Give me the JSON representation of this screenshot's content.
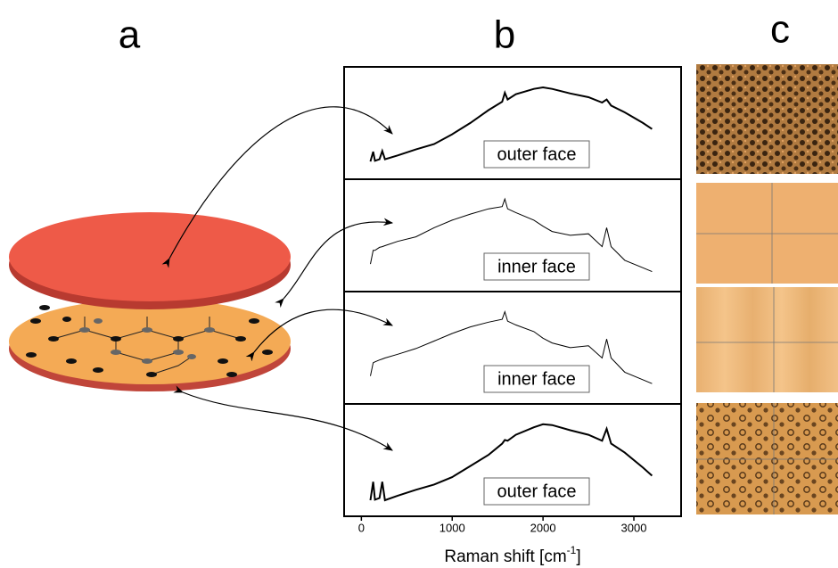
{
  "panel_labels": [
    "a",
    "b",
    "c"
  ],
  "chart_data": [
    {
      "type": "line",
      "annotation": "outer face",
      "color": "#000000",
      "xlim": [
        -190,
        3520
      ],
      "ylim": [
        0,
        100
      ],
      "x": [
        100,
        130,
        150,
        200,
        230,
        260,
        400,
        600,
        800,
        1000,
        1200,
        1400,
        1550,
        1580,
        1610,
        1700,
        1900,
        2000,
        2100,
        2300,
        2500,
        2650,
        2700,
        2750,
        2900,
        3100,
        3200
      ],
      "values": [
        11.2,
        21.6,
        12,
        13.6,
        22.4,
        13.6,
        17.6,
        24,
        29.6,
        40,
        52,
        65.6,
        74.4,
        84,
        76.8,
        82.4,
        88,
        89.6,
        88,
        83.2,
        79.2,
        73.6,
        76.8,
        70.4,
        63.2,
        52,
        45.6
      ]
    },
    {
      "type": "line",
      "annotation": "inner face",
      "color": "#000000",
      "xlim": [
        -190,
        3520
      ],
      "ylim": [
        0,
        100
      ],
      "x": [
        100,
        130,
        150,
        200,
        230,
        260,
        400,
        600,
        800,
        1000,
        1200,
        1400,
        1550,
        1580,
        1610,
        1700,
        1900,
        2000,
        2100,
        2300,
        2500,
        2650,
        2700,
        2750,
        2900,
        3100,
        3200
      ],
      "values": [
        21.6,
        36,
        36,
        39.2,
        40,
        41,
        45.6,
        50.4,
        60,
        68,
        74.4,
        80,
        82.4,
        90.4,
        80,
        76,
        68,
        61.6,
        56,
        52,
        53.6,
        40,
        60,
        40,
        25.6,
        17.6,
        13.6
      ]
    },
    {
      "type": "line",
      "annotation": "inner face",
      "color": "#000000",
      "xlim": [
        -190,
        3520
      ],
      "ylim": [
        0,
        100
      ],
      "x": [
        100,
        130,
        150,
        200,
        230,
        260,
        400,
        600,
        800,
        1000,
        1200,
        1400,
        1550,
        1580,
        1610,
        1700,
        1900,
        2000,
        2100,
        2300,
        2500,
        2650,
        2700,
        2750,
        2900,
        3100,
        3200
      ],
      "values": [
        22,
        36,
        37,
        39,
        40,
        41,
        45,
        51,
        59,
        67,
        74,
        79,
        82,
        90,
        80,
        76,
        69,
        62,
        57,
        52,
        54,
        41,
        61,
        41,
        26,
        18,
        14
      ]
    },
    {
      "type": "line",
      "annotation": "outer face",
      "color": "#000000",
      "xlim": [
        -190,
        3520
      ],
      "ylim": [
        0,
        100
      ],
      "x": [
        100,
        130,
        150,
        200,
        230,
        260,
        400,
        600,
        800,
        1000,
        1200,
        1400,
        1550,
        1580,
        1610,
        1700,
        1900,
        2000,
        2100,
        2300,
        2500,
        2650,
        2700,
        2750,
        2900,
        3100,
        3200
      ],
      "values": [
        9.4,
        29,
        10,
        11.8,
        29,
        9.4,
        14.2,
        20.5,
        26,
        33.9,
        45.7,
        57.5,
        69.3,
        73.2,
        72.4,
        78.7,
        86.6,
        89.8,
        89,
        83.5,
        78.7,
        72.4,
        85,
        69.3,
        59.8,
        44,
        35.4
      ],
      "xticks": [
        0,
        1000,
        2000,
        3000
      ],
      "xlabel": [
        "Raman shift [cm",
        "-1",
        "]"
      ]
    }
  ]
}
